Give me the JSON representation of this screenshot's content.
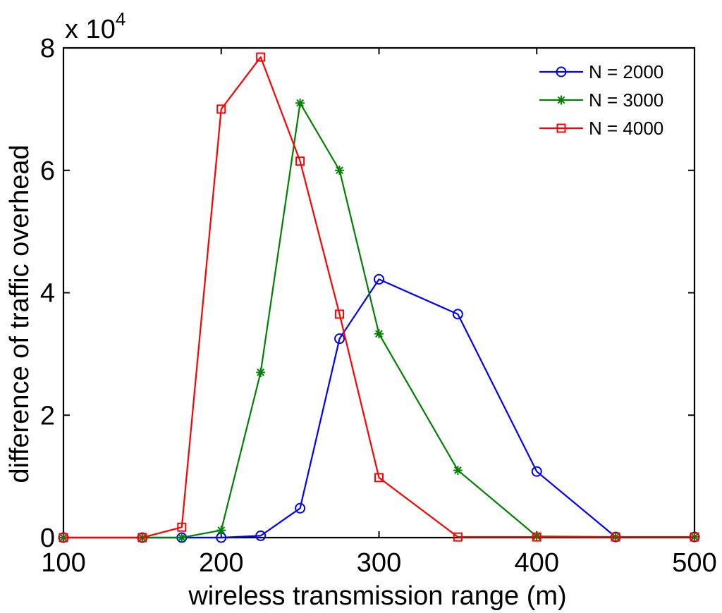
{
  "chart_data": {
    "type": "line",
    "title": "",
    "xlabel": "wireless transmission range (m)",
    "ylabel": "difference of traffic overhead",
    "x_ticks": [
      100,
      200,
      300,
      400,
      500
    ],
    "y_ticks": [
      0,
      2,
      4,
      6,
      8
    ],
    "xlim": [
      100,
      500
    ],
    "ylim": [
      0,
      80000
    ],
    "y_scale_label": {
      "base": "x 10",
      "exponent": "4"
    },
    "y_multiplier": 10000,
    "legend_position": "top-right",
    "grid": false,
    "series": [
      {
        "name": "N = 2000",
        "color": "#0000ff",
        "marker": "circle",
        "x": [
          100,
          150,
          175,
          200,
          225,
          250,
          275,
          300,
          350,
          400,
          450,
          500
        ],
        "values": [
          0,
          0,
          0,
          0,
          300,
          4800,
          32500,
          42200,
          36500,
          10800,
          100,
          100
        ]
      },
      {
        "name": "N = 3000",
        "color": "#008000",
        "marker": "star",
        "x": [
          100,
          150,
          175,
          200,
          225,
          250,
          275,
          300,
          350,
          400,
          450,
          500
        ],
        "values": [
          0,
          0,
          0,
          1200,
          27000,
          71000,
          60000,
          33300,
          11000,
          200,
          100,
          100
        ]
      },
      {
        "name": "N = 4000",
        "color": "#ff0000",
        "marker": "square",
        "x": [
          100,
          150,
          175,
          200,
          225,
          250,
          275,
          300,
          350,
          400,
          450,
          500
        ],
        "values": [
          0,
          0,
          1700,
          70000,
          78500,
          61500,
          36500,
          9800,
          100,
          100,
          100,
          100
        ]
      }
    ]
  }
}
